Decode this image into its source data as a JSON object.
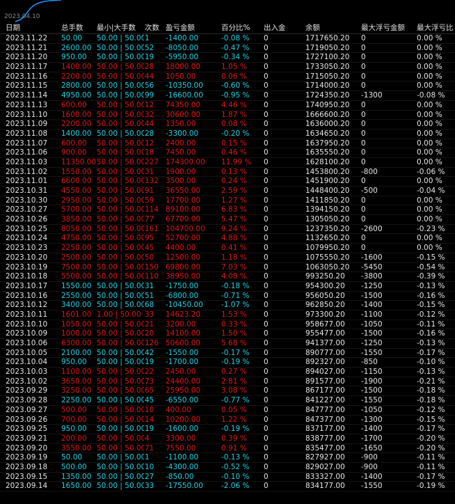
{
  "chart": {
    "date_label": "2023.04.10",
    "line_color": "#1e90ff"
  },
  "colors": {
    "positive": "#e11818",
    "negative": "#22d2e6",
    "neutral": "#e8e8e8",
    "background": "#000000"
  },
  "table": {
    "headers": [
      "日期",
      "总手数",
      "最小|大手数",
      "次数",
      "盈亏金额",
      "百分比%",
      "出入金",
      "余额",
      "最大浮亏金额",
      "最大浮亏比"
    ],
    "rows": [
      {
        "date": "2023.11.22",
        "lots": "50.00",
        "minmax": "50.00 | 50.00",
        "count": "1",
        "pnl": "-1400.00",
        "pct": "-0.08 %",
        "io": "0",
        "balance": "1717650.20",
        "maxdd": "0",
        "maxddpct": "0.00 %",
        "sign": "neg"
      },
      {
        "date": "2023.11.21",
        "lots": "2600.00",
        "minmax": "50.00 | 50.00",
        "count": "52",
        "pnl": "-8050.00",
        "pct": "-0.47 %",
        "io": "0",
        "balance": "1719050.20",
        "maxdd": "0",
        "maxddpct": "0.00 %",
        "sign": "neg"
      },
      {
        "date": "2023.11.20",
        "lots": "950.00",
        "minmax": "50.00 | 50.00",
        "count": "19",
        "pnl": "-5950.00",
        "pct": "-0.34 %",
        "io": "0",
        "balance": "1727100.20",
        "maxdd": "0",
        "maxddpct": "0.00 %",
        "sign": "neg"
      },
      {
        "date": "2023.11.17",
        "lots": "1400.00",
        "minmax": "50.00 | 50.00",
        "count": "28",
        "pnl": "18000.00",
        "pct": "1.05 %",
        "io": "0",
        "balance": "1733050.20",
        "maxdd": "0",
        "maxddpct": "0.00 %",
        "sign": "pos"
      },
      {
        "date": "2023.11.16",
        "lots": "2200.00",
        "minmax": "50.00 | 50.00",
        "count": "44",
        "pnl": "1050.00",
        "pct": "0.06 %",
        "io": "0",
        "balance": "1715050.20",
        "maxdd": "0",
        "maxddpct": "0.00 %",
        "sign": "pos"
      },
      {
        "date": "2023.11.15",
        "lots": "2800.00",
        "minmax": "50.00 | 50.00",
        "count": "56",
        "pnl": "-10350.00",
        "pct": "-0.60 %",
        "io": "0",
        "balance": "1714000.20",
        "maxdd": "0",
        "maxddpct": "0.00 %",
        "sign": "neg"
      },
      {
        "date": "2023.11.14",
        "lots": "4950.00",
        "minmax": "50.00 | 50.00",
        "count": "99",
        "pnl": "-16600.00",
        "pct": "-0.95 %",
        "io": "0",
        "balance": "1724350.20",
        "maxdd": "-1300",
        "maxddpct": "-0.08 %",
        "sign": "neg"
      },
      {
        "date": "2023.11.13",
        "lots": "600.00",
        "minmax": "50.00 | 50.00",
        "count": "12",
        "pnl": "74350.00",
        "pct": "4.46 %",
        "io": "0",
        "balance": "1740950.20",
        "maxdd": "0",
        "maxddpct": "0.00 %",
        "sign": "pos"
      },
      {
        "date": "2023.11.10",
        "lots": "1600.00",
        "minmax": "50.00 | 50.00",
        "count": "32",
        "pnl": "30600.00",
        "pct": "1.87 %",
        "io": "0",
        "balance": "1666600.20",
        "maxdd": "0",
        "maxddpct": "0.00 %",
        "sign": "pos"
      },
      {
        "date": "2023.11.09",
        "lots": "2200.00",
        "minmax": "50.00 | 50.00",
        "count": "44",
        "pnl": "1350.00",
        "pct": "0.08 %",
        "io": "0",
        "balance": "1636000.20",
        "maxdd": "0",
        "maxddpct": "0.00 %",
        "sign": "pos"
      },
      {
        "date": "2023.11.08",
        "lots": "1400.00",
        "minmax": "50.00 | 50.00",
        "count": "28",
        "pnl": "-3300.00",
        "pct": "-0.20 %",
        "io": "0",
        "balance": "1634650.20",
        "maxdd": "0",
        "maxddpct": "0.00 %",
        "sign": "neg"
      },
      {
        "date": "2023.11.07",
        "lots": "600.00",
        "minmax": "50.00 | 50.00",
        "count": "12",
        "pnl": "2400.00",
        "pct": "0.15 %",
        "io": "0",
        "balance": "1637950.20",
        "maxdd": "0",
        "maxddpct": "0.00 %",
        "sign": "pos"
      },
      {
        "date": "2023.11.06",
        "lots": "900.00",
        "minmax": "50.00 | 50.00",
        "count": "18",
        "pnl": "7450.00",
        "pct": "0.46 %",
        "io": "0",
        "balance": "1635550.20",
        "maxdd": "0",
        "maxddpct": "0.00 %",
        "sign": "pos"
      },
      {
        "date": "2023.11.03",
        "lots": "11350.00",
        "minmax": "50.00 | 50.00",
        "count": "227",
        "pnl": "174300.00",
        "pct": "11.99 %",
        "io": "0",
        "balance": "1628100.20",
        "maxdd": "0",
        "maxddpct": "0.00 %",
        "sign": "pos"
      },
      {
        "date": "2023.11.02",
        "lots": "1550.00",
        "minmax": "50.00 | 50.00",
        "count": "31",
        "pnl": "1900.00",
        "pct": "0.13 %",
        "io": "0",
        "balance": "1453800.20",
        "maxdd": "-800",
        "maxddpct": "-0.06 %",
        "sign": "pos"
      },
      {
        "date": "2023.11.01",
        "lots": "6600.00",
        "minmax": "50.00 | 50.00",
        "count": "132",
        "pnl": "3500.00",
        "pct": "0.24 %",
        "io": "0",
        "balance": "1451900.20",
        "maxdd": "0",
        "maxddpct": "0.00 %",
        "sign": "pos"
      },
      {
        "date": "2023.10.31",
        "lots": "4550.00",
        "minmax": "50.00 | 50.00",
        "count": "91",
        "pnl": "36550.00",
        "pct": "2.59 %",
        "io": "0",
        "balance": "1448400.20",
        "maxdd": "-500",
        "maxddpct": "-0.04 %",
        "sign": "pos"
      },
      {
        "date": "2023.10.30",
        "lots": "2950.00",
        "minmax": "50.00 | 50.00",
        "count": "59",
        "pnl": "17700.00",
        "pct": "1.27 %",
        "io": "0",
        "balance": "1411850.20",
        "maxdd": "0",
        "maxddpct": "0.00 %",
        "sign": "pos"
      },
      {
        "date": "2023.10.27",
        "lots": "5700.00",
        "minmax": "50.00 | 50.00",
        "count": "114",
        "pnl": "89100.00",
        "pct": "6.83 %",
        "io": "0",
        "balance": "1394150.20",
        "maxdd": "0",
        "maxddpct": "0.00 %",
        "sign": "pos"
      },
      {
        "date": "2023.10.26",
        "lots": "3850.00",
        "minmax": "50.00 | 50.00",
        "count": "77",
        "pnl": "67700.00",
        "pct": "5.47 %",
        "io": "0",
        "balance": "1305050.20",
        "maxdd": "0",
        "maxddpct": "0.00 %",
        "sign": "pos"
      },
      {
        "date": "2023.10.25",
        "lots": "8050.00",
        "minmax": "50.00 | 50.00",
        "count": "161",
        "pnl": "104700.00",
        "pct": "9.24 %",
        "io": "0",
        "balance": "1237350.20",
        "maxdd": "-2600",
        "maxddpct": "-0.23 %",
        "sign": "pos"
      },
      {
        "date": "2023.10.24",
        "lots": "4750.00",
        "minmax": "50.00 | 50.00",
        "count": "95",
        "pnl": "52700.00",
        "pct": "4.88 %",
        "io": "0",
        "balance": "1132650.20",
        "maxdd": "0",
        "maxddpct": "0.00 %",
        "sign": "pos"
      },
      {
        "date": "2023.10.23",
        "lots": "2250.00",
        "minmax": "50.00 | 50.00",
        "count": "45",
        "pnl": "4400.00",
        "pct": "0.41 %",
        "io": "0",
        "balance": "1079950.20",
        "maxdd": "0",
        "maxddpct": "0.00 %",
        "sign": "pos"
      },
      {
        "date": "2023.10.20",
        "lots": "2500.00",
        "minmax": "50.00 | 50.00",
        "count": "50",
        "pnl": "12500.00",
        "pct": "1.18 %",
        "io": "0",
        "balance": "1075550.20",
        "maxdd": "-1600",
        "maxddpct": "-0.15 %",
        "sign": "pos"
      },
      {
        "date": "2023.10.19",
        "lots": "7500.00",
        "minmax": "50.00 | 50.00",
        "count": "150",
        "pnl": "69800.00",
        "pct": "7.03 %",
        "io": "0",
        "balance": "1063050.20",
        "maxdd": "-5450",
        "maxddpct": "-0.54 %",
        "sign": "pos"
      },
      {
        "date": "2023.10.18",
        "lots": "5500.00",
        "minmax": "50.00 | 50.00",
        "count": "110",
        "pnl": "38950.00",
        "pct": "4.08 %",
        "io": "0",
        "balance": "993250.20",
        "maxdd": "-3800",
        "maxddpct": "-0.39 %",
        "sign": "pos"
      },
      {
        "date": "2023.10.17",
        "lots": "1550.00",
        "minmax": "50.00 | 50.00",
        "count": "31",
        "pnl": "-1750.00",
        "pct": "-0.18 %",
        "io": "0",
        "balance": "954300.20",
        "maxdd": "-1250",
        "maxddpct": "-0.13 %",
        "sign": "neg"
      },
      {
        "date": "2023.10.16",
        "lots": "2550.00",
        "minmax": "50.00 | 50.00",
        "count": "51",
        "pnl": "-6800.00",
        "pct": "-0.71 %",
        "io": "0",
        "balance": "956050.20",
        "maxdd": "-1500",
        "maxddpct": "-0.16 %",
        "sign": "neg"
      },
      {
        "date": "2023.10.12",
        "lots": "3400.00",
        "minmax": "50.00 | 50.00",
        "count": "68",
        "pnl": "-10450.00",
        "pct": "-1.07 %",
        "io": "0",
        "balance": "962850.20",
        "maxdd": "-1400",
        "maxddpct": "-0.15 %",
        "sign": "neg"
      },
      {
        "date": "2023.10.11",
        "lots": "1601.00",
        "minmax": "1.00 | 50.00",
        "count": "33",
        "pnl": "14623.20",
        "pct": "1.53 %",
        "io": "0",
        "balance": "973300.20",
        "maxdd": "-1100",
        "maxddpct": "-0.12 %",
        "sign": "pos"
      },
      {
        "date": "2023.10.10",
        "lots": "1050.00",
        "minmax": "50.00 | 50.00",
        "count": "21",
        "pnl": "3200.00",
        "pct": "0.33 %",
        "io": "0",
        "balance": "958677.00",
        "maxdd": "-1050",
        "maxddpct": "-0.11 %",
        "sign": "pos"
      },
      {
        "date": "2023.10.09",
        "lots": "1000.00",
        "minmax": "50.00 | 50.00",
        "count": "20",
        "pnl": "14100.00",
        "pct": "1.50 %",
        "io": "0",
        "balance": "955477.00",
        "maxdd": "-1500",
        "maxddpct": "-0.16 %",
        "sign": "pos"
      },
      {
        "date": "2023.10.06",
        "lots": "6300.00",
        "minmax": "50.00 | 50.00",
        "count": "126",
        "pnl": "50600.00",
        "pct": "5.68 %",
        "io": "0",
        "balance": "941377.00",
        "maxdd": "-1250",
        "maxddpct": "-0.13 %",
        "sign": "pos"
      },
      {
        "date": "2023.10.05",
        "lots": "2100.00",
        "minmax": "50.00 | 50.00",
        "count": "42",
        "pnl": "-1550.00",
        "pct": "-0.17 %",
        "io": "0",
        "balance": "890777.00",
        "maxdd": "-1550",
        "maxddpct": "-0.17 %",
        "sign": "neg"
      },
      {
        "date": "2023.10.04",
        "lots": "950.00",
        "minmax": "50.00 | 50.00",
        "count": "19",
        "pnl": "-1700.00",
        "pct": "-0.19 %",
        "io": "0",
        "balance": "892327.00",
        "maxdd": "-850",
        "maxddpct": "-0.10 %",
        "sign": "neg"
      },
      {
        "date": "2023.10.03",
        "lots": "1100.00",
        "minmax": "50.00 | 50.00",
        "count": "22",
        "pnl": "2450.00",
        "pct": "0.27 %",
        "io": "0",
        "balance": "894027.00",
        "maxdd": "-1150",
        "maxddpct": "-0.13 %",
        "sign": "pos"
      },
      {
        "date": "2023.10.02",
        "lots": "3650.00",
        "minmax": "50.00 | 50.00",
        "count": "73",
        "pnl": "24400.00",
        "pct": "2.81 %",
        "io": "0",
        "balance": "891577.00",
        "maxdd": "-1900",
        "maxddpct": "-0.21 %",
        "sign": "pos"
      },
      {
        "date": "2023.09.29",
        "lots": "3250.00",
        "minmax": "50.00 | 50.00",
        "count": "65",
        "pnl": "25950.00",
        "pct": "3.08 %",
        "io": "0",
        "balance": "867177.00",
        "maxdd": "-1500",
        "maxddpct": "-0.18 %",
        "sign": "pos"
      },
      {
        "date": "2023.09.28",
        "lots": "2250.00",
        "minmax": "50.00 | 50.00",
        "count": "45",
        "pnl": "-6550.00",
        "pct": "-0.77 %",
        "io": "0",
        "balance": "841227.00",
        "maxdd": "-1550",
        "maxddpct": "-0.18 %",
        "sign": "neg"
      },
      {
        "date": "2023.09.27",
        "lots": "500.00",
        "minmax": "50.00 | 50.00",
        "count": "10",
        "pnl": "400.00",
        "pct": "0.05 %",
        "io": "0",
        "balance": "847777.00",
        "maxdd": "-1050",
        "maxddpct": "-0.12 %",
        "sign": "pos"
      },
      {
        "date": "2023.09.26",
        "lots": "700.00",
        "minmax": "50.00 | 50.00",
        "count": "14",
        "pnl": "10200.00",
        "pct": "1.22 %",
        "io": "0",
        "balance": "847377.00",
        "maxdd": "-1300",
        "maxddpct": "-0.15 %",
        "sign": "pos"
      },
      {
        "date": "2023.09.25",
        "lots": "950.00",
        "minmax": "50.00 | 50.00",
        "count": "19",
        "pnl": "-1600.00",
        "pct": "-0.19 %",
        "io": "0",
        "balance": "837177.00",
        "maxdd": "-1400",
        "maxddpct": "-0.17 %",
        "sign": "neg"
      },
      {
        "date": "2023.09.21",
        "lots": "200.00",
        "minmax": "50.00 | 50.00",
        "count": "4",
        "pnl": "3300.00",
        "pct": "0.39 %",
        "io": "0",
        "balance": "838777.00",
        "maxdd": "-1700",
        "maxddpct": "-0.20 %",
        "sign": "pos"
      },
      {
        "date": "2023.09.20",
        "lots": "3550.00",
        "minmax": "50.00 | 50.00",
        "count": "71",
        "pnl": "7550.00",
        "pct": "0.91 %",
        "io": "0",
        "balance": "835477.00",
        "maxdd": "-1650",
        "maxddpct": "-0.20 %",
        "sign": "pos"
      },
      {
        "date": "2023.09.19",
        "lots": "50.00",
        "minmax": "50.00 | 50.00",
        "count": "1",
        "pnl": "-1100.00",
        "pct": "-0.13 %",
        "io": "0",
        "balance": "827927.00",
        "maxdd": "-900",
        "maxddpct": "-0.11 %",
        "sign": "neg"
      },
      {
        "date": "2023.09.18",
        "lots": "500.00",
        "minmax": "50.00 | 50.00",
        "count": "10",
        "pnl": "-4300.00",
        "pct": "-0.52 %",
        "io": "0",
        "balance": "829027.00",
        "maxdd": "-900",
        "maxddpct": "-0.11 %",
        "sign": "neg"
      },
      {
        "date": "2023.09.15",
        "lots": "1350.00",
        "minmax": "50.00 | 50.00",
        "count": "27",
        "pnl": "-850.00",
        "pct": "-0.10 %",
        "io": "0",
        "balance": "833327.00",
        "maxdd": "-1400",
        "maxddpct": "-0.17 %",
        "sign": "neg"
      },
      {
        "date": "2023.09.14",
        "lots": "1650.00",
        "minmax": "50.00 | 50.00",
        "count": "33",
        "pnl": "-17550.00",
        "pct": "-2.06 %",
        "io": "0",
        "balance": "834177.00",
        "maxdd": "-1550",
        "maxddpct": "-0.19 %",
        "sign": "neg"
      }
    ]
  }
}
